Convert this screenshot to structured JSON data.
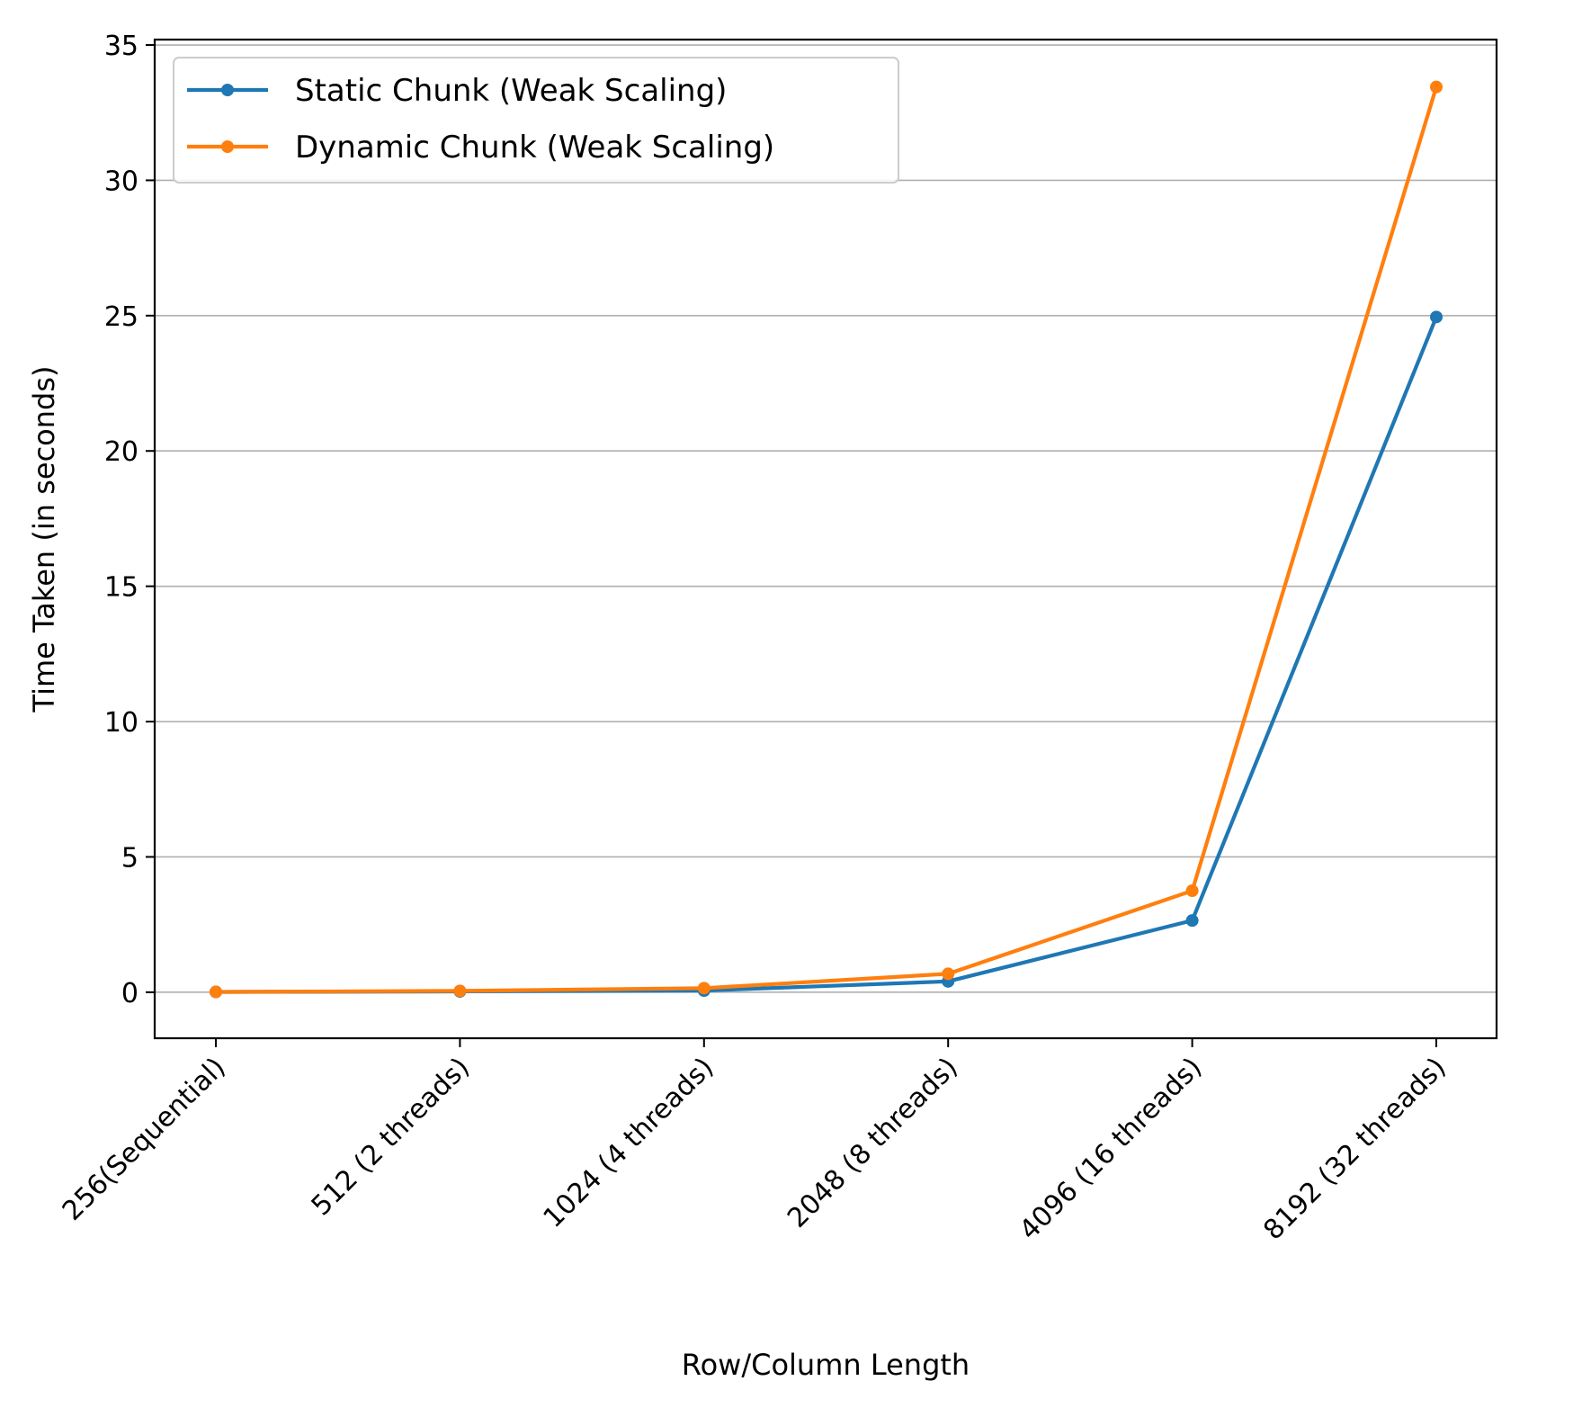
{
  "chart_data": {
    "type": "line",
    "title": "",
    "xlabel": "Row/Column Length",
    "ylabel": "Time Taken (in seconds)",
    "categories": [
      "256(Sequential)",
      "512 (2 threads)",
      "1024 (4 threads)",
      "2048 (8 threads)",
      "4096 (16 threads)",
      "8192 (32 threads)"
    ],
    "series": [
      {
        "name": "Static Chunk (Weak Scaling)",
        "color": "#1f77b4",
        "values": [
          0.01,
          0.03,
          0.06,
          0.4,
          2.65,
          24.95
        ]
      },
      {
        "name": "Dynamic Chunk (Weak Scaling)",
        "color": "#ff7f0e",
        "values": [
          0.01,
          0.05,
          0.15,
          0.68,
          3.75,
          33.45
        ]
      }
    ],
    "ylim": [
      -1.7,
      35.2
    ],
    "yticks": [
      0,
      5,
      10,
      15,
      20,
      25,
      30,
      35
    ],
    "grid": "horizontal",
    "legend": "top-left"
  }
}
